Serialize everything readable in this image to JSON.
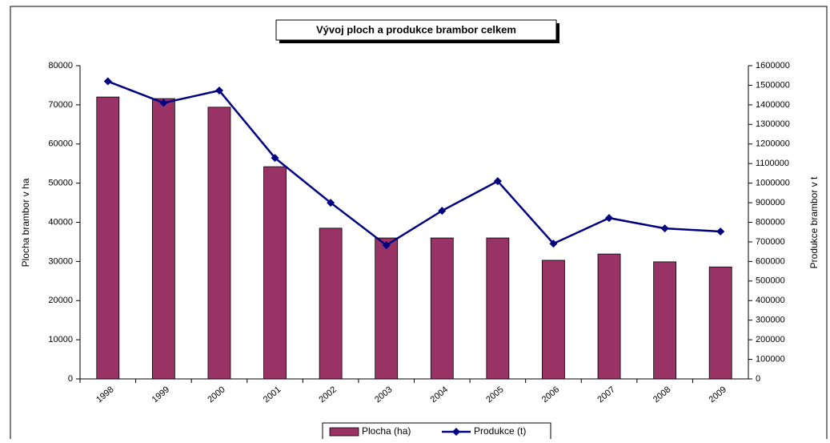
{
  "chart_data": {
    "type": "bar-line",
    "title": "Vývoj ploch a produkce brambor celkem",
    "categories": [
      "1998",
      "1999",
      "2000",
      "2001",
      "2002",
      "2003",
      "2004",
      "2005",
      "2006",
      "2007",
      "2008",
      "2009"
    ],
    "series": [
      {
        "name": "Plocha (ha)",
        "type": "bar",
        "color": "#993366",
        "axis": "y",
        "values": [
          72000,
          71600,
          69400,
          54200,
          38500,
          36000,
          36000,
          36000,
          30300,
          31900,
          29900,
          28600
        ]
      },
      {
        "name": "Produkce (t)",
        "type": "line",
        "color": "#000080",
        "axis": "y2",
        "values": [
          1520000,
          1410000,
          1473000,
          1129000,
          900000,
          683000,
          859000,
          1010000,
          691000,
          822000,
          769000,
          753000
        ]
      }
    ],
    "ylabel": "Plocha brambor v ha",
    "y2label": "Produkce brambor v t",
    "ylim": [
      0,
      80000
    ],
    "yticks": [
      0,
      10000,
      20000,
      30000,
      40000,
      50000,
      60000,
      70000,
      80000
    ],
    "y2lim": [
      0,
      1600000
    ],
    "y2ticks": [
      0,
      100000,
      200000,
      300000,
      400000,
      500000,
      600000,
      700000,
      800000,
      900000,
      1000000,
      1100000,
      1200000,
      1300000,
      1400000,
      1500000,
      1600000
    ]
  }
}
